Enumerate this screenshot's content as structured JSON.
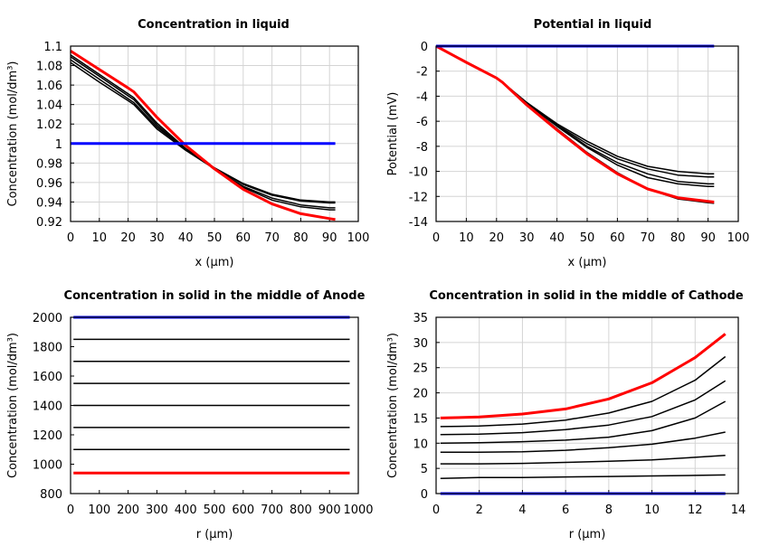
{
  "chart_data": [
    {
      "type": "line",
      "title": "Concentration in liquid",
      "xlabel": "x (µm)",
      "ylabel": "Concentration (mol/dm³)",
      "xlim": [
        0,
        100
      ],
      "ylim": [
        0.92,
        1.1
      ],
      "xticks": [
        "0",
        "10",
        "20",
        "30",
        "40",
        "50",
        "60",
        "70",
        "80",
        "90",
        "100"
      ],
      "yticks": [
        "0.92",
        "0.94",
        "0.96",
        "0.98",
        "1",
        "1.02",
        "1.04",
        "1.06",
        "1.08",
        "1.1"
      ],
      "grid": true,
      "x": [
        0,
        10,
        20,
        22,
        30,
        40,
        50,
        60,
        70,
        80,
        90,
        92
      ],
      "series": [
        {
          "color": "#000000",
          "values": [
            1.091,
            1.071,
            1.051,
            1.047,
            1.021,
            0.995,
            0.975,
            0.959,
            0.948,
            0.942,
            0.94,
            0.94
          ]
        },
        {
          "color": "#000000",
          "values": [
            1.089,
            1.069,
            1.049,
            1.045,
            1.019,
            0.994,
            0.975,
            0.958,
            0.947,
            0.941,
            0.939,
            0.939
          ]
        },
        {
          "color": "#000000",
          "values": [
            1.086,
            1.066,
            1.046,
            1.042,
            1.017,
            0.994,
            0.974,
            0.956,
            0.944,
            0.937,
            0.934,
            0.934
          ]
        },
        {
          "color": "#000000",
          "values": [
            1.083,
            1.063,
            1.044,
            1.04,
            1.015,
            0.993,
            0.974,
            0.955,
            0.942,
            0.935,
            0.932,
            0.932
          ]
        },
        {
          "color": "#ff0000",
          "values": [
            1.095,
            1.076,
            1.057,
            1.053,
            1.027,
            0.998,
            0.974,
            0.953,
            0.938,
            0.928,
            0.923,
            0.922
          ]
        },
        {
          "color": "#0000ff",
          "values": [
            1,
            1,
            1,
            1,
            1,
            1,
            1,
            1,
            1,
            1,
            1,
            1
          ]
        }
      ]
    },
    {
      "type": "line",
      "title": "Potential in liquid",
      "xlabel": "x (µm)",
      "ylabel": "Potential (mV)",
      "xlim": [
        0,
        100
      ],
      "ylim": [
        -14,
        0
      ],
      "xticks": [
        "0",
        "10",
        "20",
        "30",
        "40",
        "50",
        "60",
        "70",
        "80",
        "90",
        "100"
      ],
      "yticks": [
        "-14",
        "-12",
        "-10",
        "-8",
        "-6",
        "-4",
        "-2",
        "0"
      ],
      "grid": true,
      "x": [
        0,
        10,
        20,
        22,
        30,
        40,
        50,
        60,
        70,
        80,
        90,
        92
      ],
      "series": [
        {
          "color": "#000000",
          "values": [
            0,
            -1.3,
            -2.55,
            -2.9,
            -4.6,
            -6.6,
            -8.5,
            -10.1,
            -11.4,
            -12.2,
            -12.5,
            -12.55
          ]
        },
        {
          "color": "#000000",
          "values": [
            0,
            -1.3,
            -2.55,
            -2.9,
            -4.55,
            -6.4,
            -8.1,
            -9.5,
            -10.5,
            -11.0,
            -11.2,
            -11.2
          ]
        },
        {
          "color": "#000000",
          "values": [
            0,
            -1.3,
            -2.55,
            -2.9,
            -4.55,
            -6.35,
            -8.0,
            -9.3,
            -10.2,
            -10.8,
            -11.0,
            -11.0
          ]
        },
        {
          "color": "#000000",
          "values": [
            0,
            -1.3,
            -2.55,
            -2.9,
            -4.5,
            -6.3,
            -7.8,
            -9.0,
            -9.8,
            -10.3,
            -10.45,
            -10.45
          ]
        },
        {
          "color": "#000000",
          "values": [
            0,
            -1.3,
            -2.55,
            -2.9,
            -4.5,
            -6.2,
            -7.6,
            -8.8,
            -9.6,
            -10.0,
            -10.2,
            -10.2
          ]
        },
        {
          "color": "#ff0000",
          "values": [
            0,
            -1.3,
            -2.55,
            -2.9,
            -4.7,
            -6.7,
            -8.6,
            -10.2,
            -11.4,
            -12.1,
            -12.4,
            -12.45
          ]
        },
        {
          "color": "#0000ff",
          "values": [
            0,
            0,
            0,
            0,
            0,
            0,
            0,
            0,
            0,
            0,
            0,
            0
          ]
        }
      ]
    },
    {
      "type": "line",
      "title": "Concentration in solid in the middle of Anode",
      "xlabel": "r (µm)",
      "ylabel": "Concentration (mol/dm³)",
      "xlim": [
        0,
        1000
      ],
      "ylim": [
        800,
        2000
      ],
      "xticks": [
        "0",
        "100",
        "200",
        "300",
        "400",
        "500",
        "600",
        "700",
        "800",
        "900",
        "1000"
      ],
      "yticks": [
        "800",
        "1000",
        "1200",
        "1400",
        "1600",
        "1800",
        "2000"
      ],
      "grid": false,
      "x": [
        10,
        970
      ],
      "series": [
        {
          "color": "#000000",
          "values": [
            1850,
            1850
          ]
        },
        {
          "color": "#000000",
          "values": [
            1700,
            1700
          ]
        },
        {
          "color": "#000000",
          "values": [
            1550,
            1550
          ]
        },
        {
          "color": "#000000",
          "values": [
            1400,
            1400
          ]
        },
        {
          "color": "#000000",
          "values": [
            1250,
            1250
          ]
        },
        {
          "color": "#000000",
          "values": [
            1100,
            1100
          ]
        },
        {
          "color": "#ff0000",
          "values": [
            940,
            940
          ]
        },
        {
          "color": "#0000ff",
          "values": [
            2000,
            2000
          ]
        }
      ]
    },
    {
      "type": "line",
      "title": "Concentration in solid in the middle of Cathode",
      "xlabel": "r (µm)",
      "ylabel": "Concentration (mol/dm³)",
      "xlim": [
        0,
        14
      ],
      "ylim": [
        0,
        35
      ],
      "xticks": [
        "0",
        "2",
        "4",
        "6",
        "8",
        "10",
        "12",
        "14"
      ],
      "yticks": [
        "0",
        "5",
        "10",
        "15",
        "20",
        "25",
        "30",
        "35"
      ],
      "grid": true,
      "x": [
        0.2,
        2,
        4,
        6,
        8,
        10,
        12,
        13.4
      ],
      "series": [
        {
          "color": "#000000",
          "values": [
            13.3,
            13.4,
            13.8,
            14.6,
            16,
            18.3,
            22.5,
            27.2
          ]
        },
        {
          "color": "#000000",
          "values": [
            11.7,
            11.8,
            12.1,
            12.7,
            13.6,
            15.3,
            18.6,
            22.4
          ]
        },
        {
          "color": "#000000",
          "values": [
            10,
            10.1,
            10.3,
            10.6,
            11.2,
            12.5,
            15,
            18.3
          ]
        },
        {
          "color": "#000000",
          "values": [
            8.2,
            8.2,
            8.3,
            8.6,
            9.1,
            9.8,
            11,
            12.2
          ]
        },
        {
          "color": "#000000",
          "values": [
            5.9,
            5.9,
            6,
            6.2,
            6.4,
            6.7,
            7.2,
            7.6
          ]
        },
        {
          "color": "#000000",
          "values": [
            3,
            3.2,
            3.2,
            3.3,
            3.4,
            3.5,
            3.6,
            3.7
          ]
        },
        {
          "color": "#ff0000",
          "values": [
            15,
            15.2,
            15.8,
            16.8,
            18.8,
            22,
            27,
            31.7
          ]
        },
        {
          "color": "#0000ff",
          "values": [
            0,
            0,
            0,
            0,
            0,
            0,
            0,
            0
          ]
        }
      ]
    }
  ]
}
